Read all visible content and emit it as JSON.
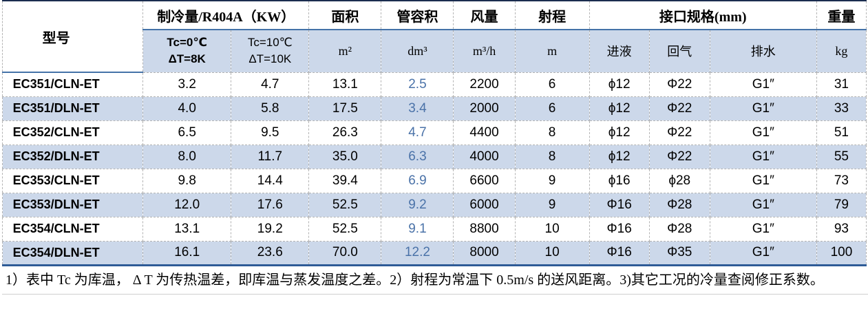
{
  "colors": {
    "header_fill": "#ccd8ea",
    "row_alt_fill": "#ccd8ea",
    "rule_blue": "#4472a8",
    "border_top": "#1b2d4f",
    "border_bottom_thick": "#2e5b97",
    "accent_value_text": "#4a72a8",
    "grid_dash": "#b3b3b3"
  },
  "table": {
    "header": {
      "model": "型号",
      "capacity_group": "制冷量/R404A（KW）",
      "capacity_sub": [
        {
          "line1": "Tc=0℃",
          "line2": "ΔT=8K"
        },
        {
          "line1": "Tc=10℃",
          "line2": "ΔT=10K"
        }
      ],
      "area": {
        "label": "面积",
        "unit": "m²"
      },
      "tube_volume": {
        "label": "管容积",
        "unit": "dm³"
      },
      "air_flow": {
        "label": "风量",
        "unit": "m³/h"
      },
      "air_throw": {
        "label": "射程",
        "unit": "m"
      },
      "connection_group": "接口规格(mm)",
      "connection_sub": {
        "liquid_in": "进液",
        "gas_return": "回气",
        "drain": "排水"
      },
      "weight": {
        "label": "重量",
        "unit": "kg"
      }
    },
    "rows": [
      {
        "model": "EC351/CLN-ET",
        "capacity_tc0": "3.2",
        "capacity_tc10": "4.7",
        "area": "13.1",
        "tube_volume": "2.5",
        "air_flow": "2200",
        "air_throw": "6",
        "liquid_in": "ϕ12",
        "gas_return": "Φ22",
        "drain": "G1″",
        "weight": "31"
      },
      {
        "model": "EC351/DLN-ET",
        "capacity_tc0": "4.0",
        "capacity_tc10": "5.8",
        "area": "17.5",
        "tube_volume": "3.4",
        "air_flow": "2000",
        "air_throw": "6",
        "liquid_in": "ϕ12",
        "gas_return": "Φ22",
        "drain": "G1″",
        "weight": "33"
      },
      {
        "model": "EC352/CLN-ET",
        "capacity_tc0": "6.5",
        "capacity_tc10": "9.5",
        "area": "26.3",
        "tube_volume": "4.7",
        "air_flow": "4400",
        "air_throw": "8",
        "liquid_in": "ϕ12",
        "gas_return": "Φ22",
        "drain": "G1″",
        "weight": "51"
      },
      {
        "model": "EC352/DLN-ET",
        "capacity_tc0": "8.0",
        "capacity_tc10": "11.7",
        "area": "35.0",
        "tube_volume": "6.3",
        "air_flow": "4000",
        "air_throw": "8",
        "liquid_in": "ϕ12",
        "gas_return": "Φ22",
        "drain": "G1″",
        "weight": "55"
      },
      {
        "model": "EC353/CLN-ET",
        "capacity_tc0": "9.8",
        "capacity_tc10": "14.4",
        "area": "39.4",
        "tube_volume": "6.9",
        "air_flow": "6600",
        "air_throw": "9",
        "liquid_in": "ϕ16",
        "gas_return": "ϕ28",
        "drain": "G1″",
        "weight": "73"
      },
      {
        "model": "EC353/DLN-ET",
        "capacity_tc0": "12.0",
        "capacity_tc10": "17.6",
        "area": "52.5",
        "tube_volume": "9.2",
        "air_flow": "6000",
        "air_throw": "9",
        "liquid_in": "Φ16",
        "gas_return": "Φ28",
        "drain": "G1″",
        "weight": "79"
      },
      {
        "model": "EC354/CLN-ET",
        "capacity_tc0": "13.1",
        "capacity_tc10": "19.2",
        "area": "52.5",
        "tube_volume": "9.1",
        "air_flow": "8800",
        "air_throw": "10",
        "liquid_in": "Φ16",
        "gas_return": "Φ28",
        "drain": "G1″",
        "weight": "93"
      },
      {
        "model": "EC354/DLN-ET",
        "capacity_tc0": "16.1",
        "capacity_tc10": "23.6",
        "area": "70.0",
        "tube_volume": "12.2",
        "air_flow": "8000",
        "air_throw": "10",
        "liquid_in": "Φ16",
        "gas_return": "Φ35",
        "drain": "G1″",
        "weight": "100"
      }
    ]
  },
  "notes": "1）表中 Tc 为库温， Δ T 为传热温差，即库温与蒸发温度之差。2）射程为常温下 0.5m/s 的送风距离。3)其它工况的冷量查阅修正系数。"
}
